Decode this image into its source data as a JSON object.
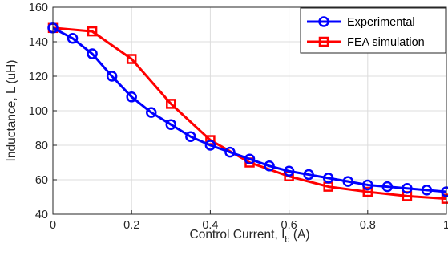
{
  "chart_data": {
    "type": "line",
    "xlabel": "Control Current, I",
    "xlabel_sub": "b",
    "xlabel_unit": " (A)",
    "ylabel": "Inductance, L (uH)",
    "xlim": [
      0,
      1
    ],
    "ylim": [
      40,
      160
    ],
    "x_ticks": [
      "0",
      "0.2",
      "0.4",
      "0.6",
      "0.8",
      "1"
    ],
    "y_ticks": [
      "40",
      "60",
      "80",
      "100",
      "120",
      "140",
      "160"
    ],
    "grid": true,
    "legend_position": "top-right",
    "series": [
      {
        "name": "Experimental",
        "color": "#0000ff",
        "marker": "circle",
        "x": [
          0,
          0.05,
          0.1,
          0.15,
          0.2,
          0.25,
          0.3,
          0.35,
          0.4,
          0.45,
          0.5,
          0.55,
          0.6,
          0.65,
          0.7,
          0.75,
          0.8,
          0.85,
          0.9,
          0.95,
          1.0
        ],
        "y": [
          148,
          142,
          133,
          120,
          108,
          99,
          92,
          85,
          80,
          76,
          72,
          68,
          65,
          63,
          61,
          59,
          57,
          56,
          55,
          54,
          53
        ]
      },
      {
        "name": "FEA simulation",
        "color": "#ff0000",
        "marker": "square",
        "x": [
          0,
          0.1,
          0.2,
          0.3,
          0.4,
          0.5,
          0.6,
          0.7,
          0.8,
          0.9,
          1.0
        ],
        "y": [
          148,
          146,
          130,
          104,
          83,
          70,
          62,
          56,
          53,
          50.5,
          49
        ]
      }
    ]
  }
}
